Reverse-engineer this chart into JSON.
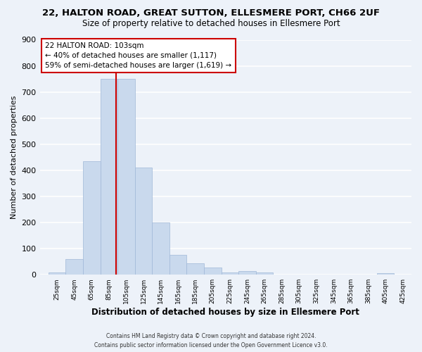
{
  "title1": "22, HALTON ROAD, GREAT SUTTON, ELLESMERE PORT, CH66 2UF",
  "title2": "Size of property relative to detached houses in Ellesmere Port",
  "xlabel": "Distribution of detached houses by size in Ellesmere Port",
  "ylabel": "Number of detached properties",
  "bar_edges": [
    25,
    45,
    65,
    85,
    105,
    125,
    145,
    165,
    185,
    205,
    225,
    245,
    265,
    285,
    305,
    325,
    345,
    365,
    385,
    405,
    425
  ],
  "bar_heights": [
    10,
    60,
    435,
    750,
    750,
    410,
    200,
    77,
    45,
    27,
    8,
    15,
    8,
    0,
    0,
    0,
    0,
    0,
    0,
    5
  ],
  "bar_color": "#c9d9ed",
  "bar_edge_color": "#a0b8d8",
  "vline_x": 103,
  "vline_color": "#cc0000",
  "ylim": [
    0,
    900
  ],
  "yticks": [
    0,
    100,
    200,
    300,
    400,
    500,
    600,
    700,
    800,
    900
  ],
  "tick_labels": [
    "25sqm",
    "45sqm",
    "65sqm",
    "85sqm",
    "105sqm",
    "125sqm",
    "145sqm",
    "165sqm",
    "185sqm",
    "205sqm",
    "225sqm",
    "245sqm",
    "265sqm",
    "285sqm",
    "305sqm",
    "325sqm",
    "345sqm",
    "365sqm",
    "385sqm",
    "405sqm",
    "425sqm"
  ],
  "annotation_title": "22 HALTON ROAD: 103sqm",
  "annotation_line1": "← 40% of detached houses are smaller (1,117)",
  "annotation_line2": "59% of semi-detached houses are larger (1,619) →",
  "annotation_box_color": "#ffffff",
  "annotation_box_edge": "#cc0000",
  "footer1": "Contains HM Land Registry data © Crown copyright and database right 2024.",
  "footer2": "Contains public sector information licensed under the Open Government Licence v3.0.",
  "background_color": "#edf2f9",
  "grid_color": "#ffffff",
  "title1_fontsize": 9.5,
  "title2_fontsize": 8.5,
  "xlabel_fontsize": 8.5,
  "ylabel_fontsize": 8,
  "annotation_fontsize": 7.5,
  "tick_fontsize": 6.5,
  "footer_fontsize": 5.5
}
